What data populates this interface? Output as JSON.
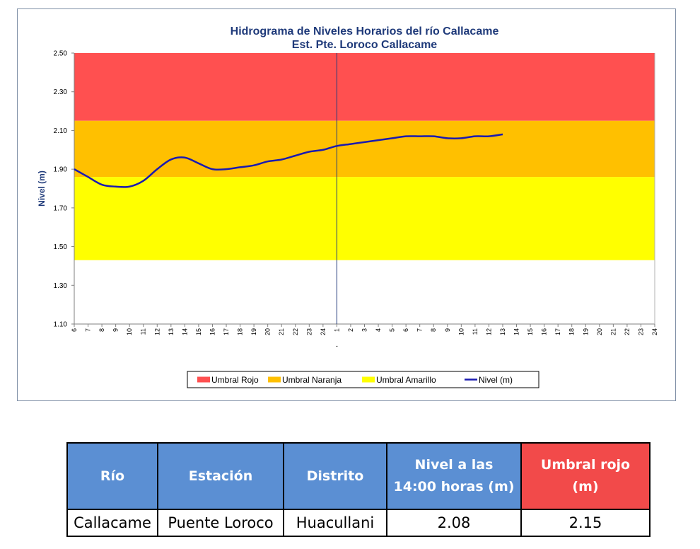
{
  "chart_data": {
    "type": "line",
    "title": "Hidrograma de Niveles Horarios del río Callacame",
    "subtitle": "Est. Pte. Loroco Callacame",
    "ylabel": "Nivel  (m)",
    "xlabel": "",
    "ylim": [
      1.1,
      2.5
    ],
    "yticks": [
      "1.10",
      "1.30",
      "1.50",
      "1.70",
      "1.90",
      "2.10",
      "2.30",
      "2.50"
    ],
    "x_ticks": [
      "6",
      "7",
      "8",
      "9",
      "10",
      "11",
      "12",
      "13",
      "14",
      "15",
      "16",
      "17",
      "18",
      "19",
      "20",
      "21",
      "22",
      "23",
      "24",
      "1",
      "2",
      "3",
      "4",
      "5",
      "6",
      "7",
      "8",
      "9",
      "10",
      "11",
      "12",
      "13",
      "14",
      "15",
      "16",
      "17",
      "18",
      "19",
      "20",
      "21",
      "22",
      "23",
      "24"
    ],
    "x_sub_label": "-",
    "thresholds": [
      {
        "name": "Umbral Rojo",
        "from": 2.15,
        "to": 2.5,
        "color": "#ff5050"
      },
      {
        "name": "Umbral Naranja",
        "from": 1.86,
        "to": 2.15,
        "color": "#ffc000"
      },
      {
        "name": "Umbral Amarillo",
        "from": 1.43,
        "to": 1.86,
        "color": "#ffff00"
      }
    ],
    "series": [
      {
        "name": "Nivel (m)",
        "color": "#1a1ab0",
        "values": [
          1.9,
          1.86,
          1.82,
          1.81,
          1.81,
          1.84,
          1.9,
          1.95,
          1.96,
          1.93,
          1.9,
          1.9,
          1.91,
          1.92,
          1.94,
          1.95,
          1.97,
          1.99,
          2.0,
          2.02,
          2.03,
          2.04,
          2.05,
          2.06,
          2.07,
          2.07,
          2.07,
          2.06,
          2.06,
          2.07,
          2.07,
          2.08
        ]
      }
    ],
    "legend": [
      "Umbral Rojo",
      "Umbral Naranja",
      "Umbral Amarillo",
      "Nivel (m)"
    ],
    "legend_position": "bottom",
    "grid": false
  },
  "table": {
    "headers": [
      "Río",
      "Estación",
      "Distrito",
      "Nivel a las 14:00 horas (m)",
      "Umbral rojo (m)"
    ],
    "row": [
      "Callacame",
      "Puente Loroco",
      "Huacullani",
      "2.08",
      "2.15"
    ]
  }
}
